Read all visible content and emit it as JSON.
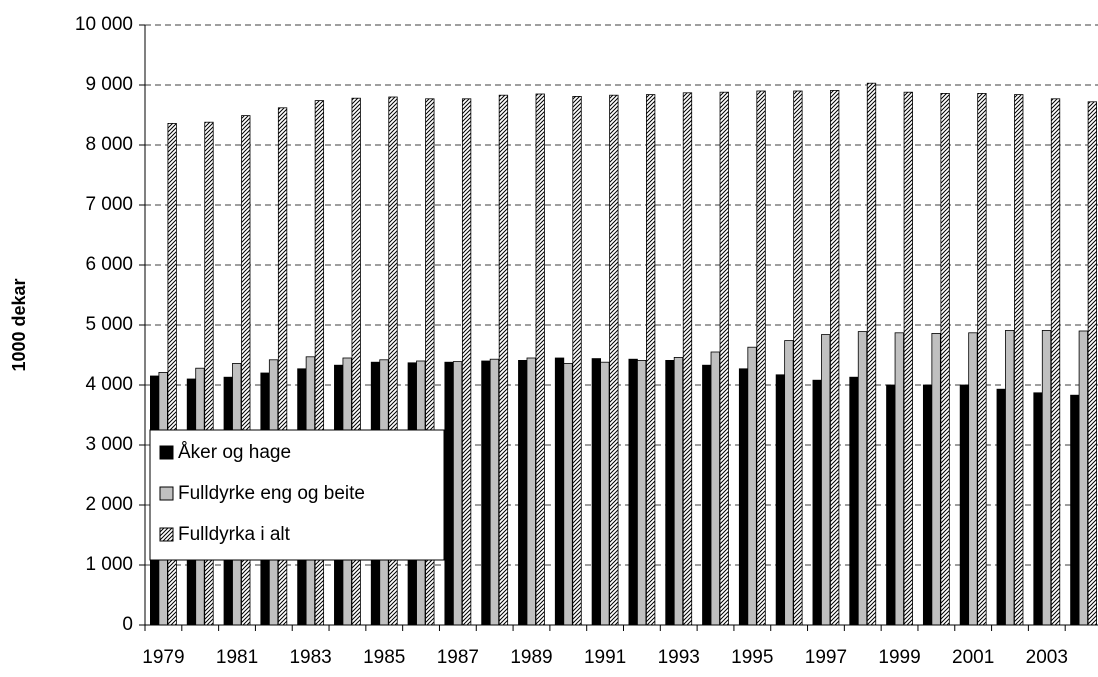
{
  "chart_data": {
    "type": "bar",
    "y_label": "1000 dekar",
    "categories": [
      "1979",
      null,
      "1981",
      null,
      "1983",
      null,
      "1985",
      null,
      "1987",
      null,
      "1989",
      null,
      "1991",
      null,
      "1993",
      null,
      "1995",
      null,
      "1997",
      null,
      "1999",
      null,
      "2001",
      null,
      "2003",
      null
    ],
    "series": [
      {
        "name": "Åker og hage",
        "color": "#000000",
        "values": [
          4150,
          4100,
          4130,
          4200,
          4270,
          4330,
          4380,
          4370,
          4380,
          4400,
          4410,
          4450,
          4440,
          4430,
          4410,
          4330,
          4270,
          4170,
          4080,
          4130,
          4000,
          4000,
          4000,
          3930,
          3870,
          3830
        ]
      },
      {
        "name": "Fulldyrke eng og beite",
        "color": "#c0c0c0",
        "values": [
          4210,
          4280,
          4360,
          4420,
          4470,
          4450,
          4420,
          4400,
          4390,
          4430,
          4450,
          4360,
          4380,
          4410,
          4460,
          4550,
          4630,
          4740,
          4840,
          4890,
          4870,
          4860,
          4870,
          4910,
          4910,
          4900
        ]
      },
      {
        "name": "Fulldyrka i alt",
        "color": "#000000",
        "hatch": true,
        "values": [
          8360,
          8380,
          8490,
          8620,
          8740,
          8780,
          8800,
          8770,
          8770,
          8830,
          8850,
          8810,
          8830,
          8840,
          8870,
          8880,
          8900,
          8900,
          8910,
          9030,
          8880,
          8860,
          8860,
          8840,
          8770,
          8720
        ]
      }
    ],
    "ylim": [
      0,
      10000
    ],
    "yticks": [
      0,
      {
        "value": 1000,
        "label": "1 000"
      },
      {
        "value": 2000,
        "label": "2 000"
      },
      {
        "value": 3000,
        "label": "3 000"
      },
      {
        "value": 4000,
        "label": "4 000"
      },
      {
        "value": 5000,
        "label": "5 000"
      },
      {
        "value": 6000,
        "label": "6 000"
      },
      {
        "value": 7000,
        "label": "7 000"
      },
      {
        "value": 8000,
        "label": "8 000"
      },
      {
        "value": 9000,
        "label": "9 000"
      },
      {
        "value": 10000,
        "label": "10 000"
      }
    ],
    "grid": true,
    "legend": "left"
  }
}
